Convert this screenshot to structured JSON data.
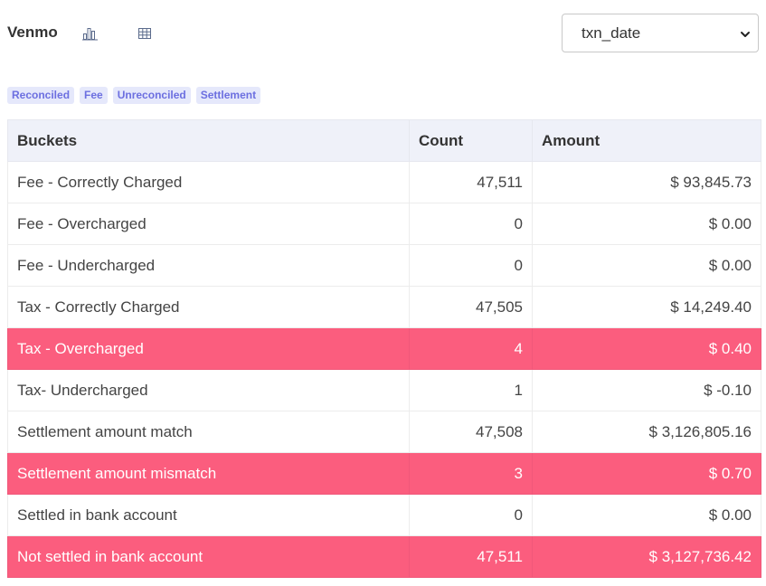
{
  "header": {
    "title": "Venmo",
    "icons": [
      "bar-chart-icon",
      "table-grid-icon"
    ],
    "select": {
      "value": "txn_date"
    }
  },
  "tags": [
    "Reconciled",
    "Fee",
    "Unreconciled",
    "Settlement"
  ],
  "colors": {
    "flagged_row": "#fb5d7e",
    "tag_bg": "#e5e8fb",
    "tag_text": "#6c6fe0",
    "header_bg": "#eff1f9"
  },
  "table": {
    "columns": [
      "Buckets",
      "Count",
      "Amount"
    ],
    "rows": [
      {
        "bucket": "Fee - Correctly Charged",
        "count": "47,511",
        "amount": "$ 93,845.73",
        "flagged": false
      },
      {
        "bucket": "Fee - Overcharged",
        "count": "0",
        "amount": "$ 0.00",
        "flagged": false
      },
      {
        "bucket": "Fee - Undercharged",
        "count": "0",
        "amount": "$ 0.00",
        "flagged": false
      },
      {
        "bucket": "Tax - Correctly Charged",
        "count": "47,505",
        "amount": "$ 14,249.40",
        "flagged": false
      },
      {
        "bucket": "Tax - Overcharged",
        "count": "4",
        "amount": "$ 0.40",
        "flagged": true
      },
      {
        "bucket": "Tax- Undercharged",
        "count": "1",
        "amount": "$ -0.10",
        "flagged": false
      },
      {
        "bucket": "Settlement amount match",
        "count": "47,508",
        "amount": "$ 3,126,805.16",
        "flagged": false
      },
      {
        "bucket": "Settlement amount mismatch",
        "count": "3",
        "amount": "$ 0.70",
        "flagged": true
      },
      {
        "bucket": "Settled in bank account",
        "count": "0",
        "amount": "$ 0.00",
        "flagged": false
      },
      {
        "bucket": "Not settled in bank account",
        "count": "47,511",
        "amount": "$ 3,127,736.42",
        "flagged": true
      }
    ]
  }
}
